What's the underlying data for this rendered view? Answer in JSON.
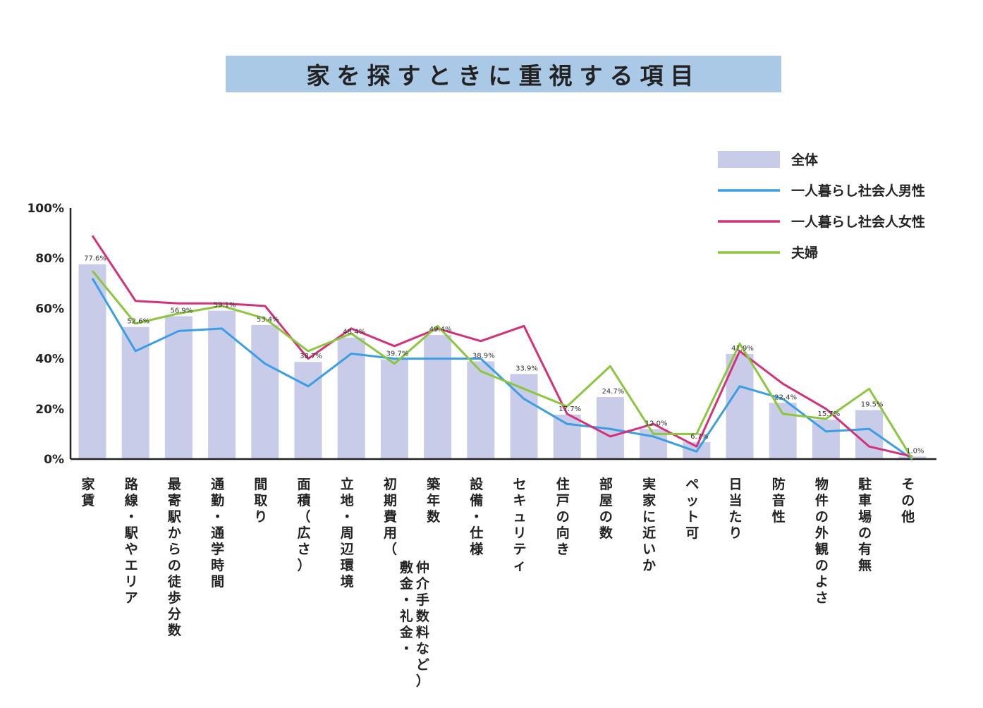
{
  "title": "家を探すときに重視する項目",
  "chart_data": {
    "type": "bar",
    "title": "家を探すときに重視する項目",
    "xlabel": "",
    "ylabel": "",
    "ylim": [
      0,
      100
    ],
    "y_ticks": [
      "0%",
      "20%",
      "40%",
      "60%",
      "80%",
      "100%"
    ],
    "y_tick_values": [
      0,
      20,
      40,
      60,
      80,
      100
    ],
    "legend_position": "top-right",
    "categories": [
      "家賃",
      "路線・駅やエリア",
      "最寄駅からの徒歩分数",
      "通勤・通学時間",
      "間取り",
      "面積（広さ）",
      "立地・周辺環境",
      "初期費用（敷金・礼金・仲介手数料など）",
      "築年数",
      "設備・仕様",
      "セキュリティ",
      "住戸の向き",
      "部屋の数",
      "実家に近いか",
      "ペット可",
      "日当たり",
      "防音性",
      "物件の外観のよさ",
      "駐車場の有無",
      "その他"
    ],
    "category_lines": [
      [
        "家賃"
      ],
      [
        "路線・駅やエリア"
      ],
      [
        "最寄駅からの徒歩分数"
      ],
      [
        "通勤・通学時間"
      ],
      [
        "間取り"
      ],
      [
        "面積（広さ）"
      ],
      [
        "立地・周辺環境"
      ],
      [
        "初期費用（",
        "敷金・礼金・",
        "仲介手数料など）"
      ],
      [
        "築年数"
      ],
      [
        "設備・仕様"
      ],
      [
        "セキュリティ"
      ],
      [
        "住戸の向き"
      ],
      [
        "部屋の数"
      ],
      [
        "実家に近いか"
      ],
      [
        "ペット可"
      ],
      [
        "日当たり"
      ],
      [
        "防音性"
      ],
      [
        "物件の外観のよさ"
      ],
      [
        "駐車場の有無"
      ],
      [
        "その他"
      ]
    ],
    "series": [
      {
        "name": "全体",
        "kind": "bar",
        "color": "#c9cce8",
        "values": [
          77.6,
          52.6,
          56.9,
          59.1,
          53.4,
          38.7,
          48.4,
          39.7,
          49.4,
          38.9,
          33.9,
          17.7,
          24.7,
          12.0,
          6.7,
          41.9,
          22.4,
          15.7,
          19.5,
          1.0
        ],
        "labels": [
          "77.6%",
          "52.6%",
          "56.9%",
          "59.1%",
          "53.4%",
          "38.7%",
          "48.4%",
          "39.7%",
          "49.4%",
          "38.9%",
          "33.9%",
          "17.7%",
          "24.7%",
          "12.0%",
          "6.7%",
          "41.9%",
          "22.4%",
          "15.7%",
          "19.5%",
          "1.0%"
        ]
      },
      {
        "name": "一人暮らし社会人男性",
        "kind": "line",
        "color": "#3a9ee4",
        "values": [
          72,
          43,
          51,
          52,
          38,
          29,
          42,
          40,
          40,
          40,
          24,
          14,
          12,
          9,
          3,
          29,
          24,
          11,
          12,
          0
        ]
      },
      {
        "name": "一人暮らし社会人女性",
        "kind": "line",
        "color": "#d4317a",
        "values": [
          89,
          63,
          62,
          62,
          61,
          40,
          52,
          45,
          52,
          47,
          53,
          18,
          9,
          14,
          5,
          43,
          30,
          20,
          5,
          1
        ]
      },
      {
        "name": "夫婦",
        "kind": "line",
        "color": "#8cc63f",
        "values": [
          75,
          54,
          58,
          61,
          56,
          43,
          50,
          38,
          53,
          35,
          28,
          21,
          37,
          10,
          10,
          46,
          18,
          16,
          28,
          0
        ]
      }
    ]
  }
}
